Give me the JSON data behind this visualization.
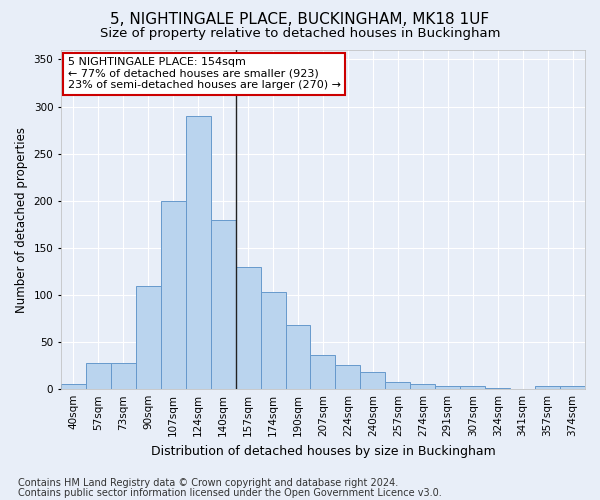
{
  "title": "5, NIGHTINGALE PLACE, BUCKINGHAM, MK18 1UF",
  "subtitle": "Size of property relative to detached houses in Buckingham",
  "xlabel": "Distribution of detached houses by size in Buckingham",
  "ylabel": "Number of detached properties",
  "categories": [
    "40sqm",
    "57sqm",
    "73sqm",
    "90sqm",
    "107sqm",
    "124sqm",
    "140sqm",
    "157sqm",
    "174sqm",
    "190sqm",
    "207sqm",
    "224sqm",
    "240sqm",
    "257sqm",
    "274sqm",
    "291sqm",
    "307sqm",
    "324sqm",
    "341sqm",
    "357sqm",
    "374sqm"
  ],
  "values": [
    6,
    28,
    28,
    110,
    200,
    290,
    180,
    130,
    103,
    68,
    36,
    26,
    18,
    8,
    5,
    3,
    3,
    1,
    0,
    3,
    3
  ],
  "bar_color": "#bad4ee",
  "bar_edge_color": "#6699cc",
  "background_color": "#e8eef8",
  "grid_color": "#ffffff",
  "vline_index": 6.5,
  "vline_color": "#222222",
  "annotation_text": "5 NIGHTINGALE PLACE: 154sqm\n← 77% of detached houses are smaller (923)\n23% of semi-detached houses are larger (270) →",
  "annotation_box_color": "#ffffff",
  "annotation_box_edge": "#cc0000",
  "footnote1": "Contains HM Land Registry data © Crown copyright and database right 2024.",
  "footnote2": "Contains public sector information licensed under the Open Government Licence v3.0.",
  "ylim": [
    0,
    360
  ],
  "yticks": [
    0,
    50,
    100,
    150,
    200,
    250,
    300,
    350
  ],
  "title_fontsize": 11,
  "subtitle_fontsize": 9.5,
  "xlabel_fontsize": 9,
  "ylabel_fontsize": 8.5,
  "tick_fontsize": 7.5,
  "annotation_fontsize": 8,
  "footnote_fontsize": 7
}
